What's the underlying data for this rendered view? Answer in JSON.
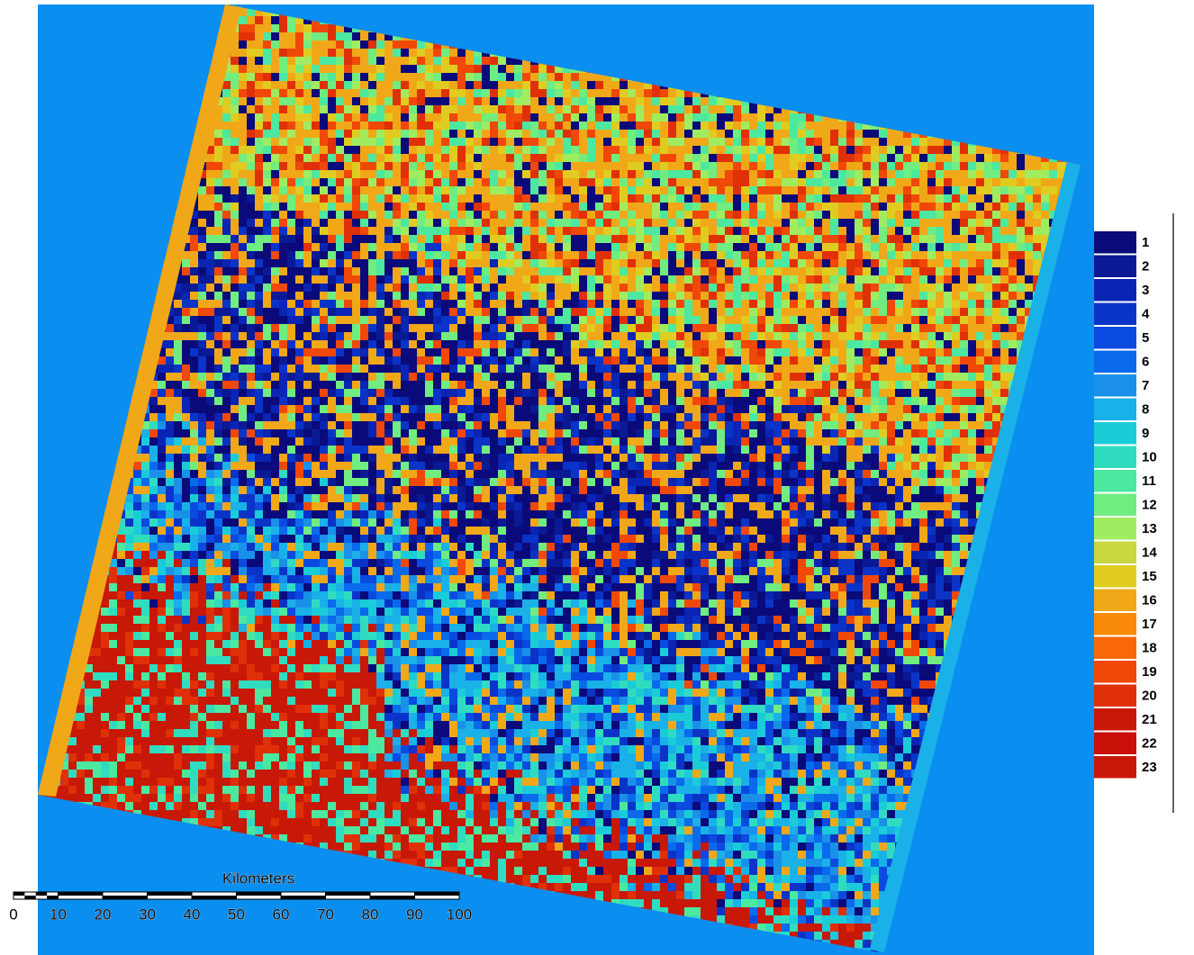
{
  "legend": {
    "items": [
      {
        "label": "1",
        "color": "#0a0a7a"
      },
      {
        "label": "2",
        "color": "#0a1a94"
      },
      {
        "label": "3",
        "color": "#0a24b4"
      },
      {
        "label": "4",
        "color": "#0a34c8"
      },
      {
        "label": "5",
        "color": "#0a4ae0"
      },
      {
        "label": "6",
        "color": "#0a6aec"
      },
      {
        "label": "7",
        "color": "#1a90e8"
      },
      {
        "label": "8",
        "color": "#1ab0e8"
      },
      {
        "label": "9",
        "color": "#1accd8"
      },
      {
        "label": "10",
        "color": "#30dcc0"
      },
      {
        "label": "11",
        "color": "#4ce8a0"
      },
      {
        "label": "12",
        "color": "#70ec80"
      },
      {
        "label": "13",
        "color": "#a0ec60"
      },
      {
        "label": "14",
        "color": "#c8d840"
      },
      {
        "label": "15",
        "color": "#e0cc20"
      },
      {
        "label": "16",
        "color": "#f0a818"
      },
      {
        "label": "17",
        "color": "#f88a08"
      },
      {
        "label": "18",
        "color": "#f86808"
      },
      {
        "label": "19",
        "color": "#f04808"
      },
      {
        "label": "20",
        "color": "#e03008"
      },
      {
        "label": "21",
        "color": "#c81808"
      },
      {
        "label": "22",
        "color": "#c81008"
      },
      {
        "label": "23",
        "color": "#c81808"
      }
    ]
  },
  "scale_bar": {
    "title": "Kilometers",
    "ticks": [
      0,
      10,
      20,
      30,
      40,
      50,
      60,
      70,
      80,
      90,
      100
    ]
  }
}
